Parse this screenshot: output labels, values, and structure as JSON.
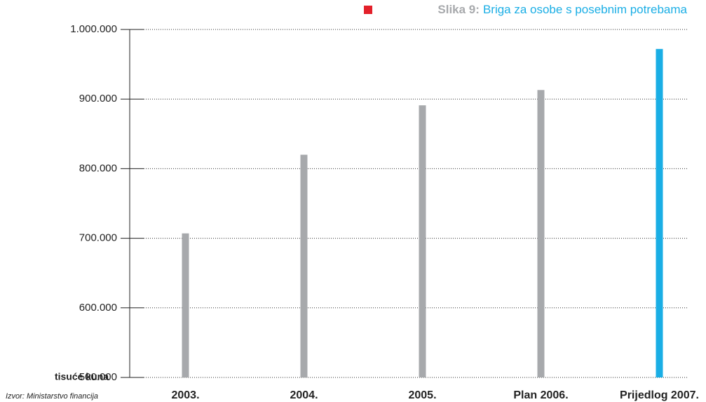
{
  "chart_data": {
    "type": "bar",
    "title_label": "Slika 9:",
    "title": "Briga za osobe s posebnim potrebama",
    "y_unit": "tisuće kuna",
    "source": "Izvor: Ministarstvo financija",
    "categories": [
      "2003.",
      "2004.",
      "2005.",
      "Plan 2006.",
      "Prijedlog 2007."
    ],
    "values": [
      707000,
      820000,
      891000,
      913000,
      972000
    ],
    "colors": [
      "#a7a9ac",
      "#a7a9ac",
      "#a7a9ac",
      "#a7a9ac",
      "#1aaee5"
    ],
    "label_colors": [
      "#111111",
      "#111111",
      "#111111",
      "#111111",
      "#1aaee5"
    ],
    "ylim": [
      500000,
      1000000
    ],
    "yticks": [
      {
        "value": 500000,
        "label": "500.000"
      },
      {
        "value": 600000,
        "label": "600.000"
      },
      {
        "value": 700000,
        "label": "700.000"
      },
      {
        "value": 800000,
        "label": "800.000"
      },
      {
        "value": 900000,
        "label": "900.000"
      },
      {
        "value": 1000000,
        "label": "1.000.000"
      }
    ],
    "grid": true
  }
}
